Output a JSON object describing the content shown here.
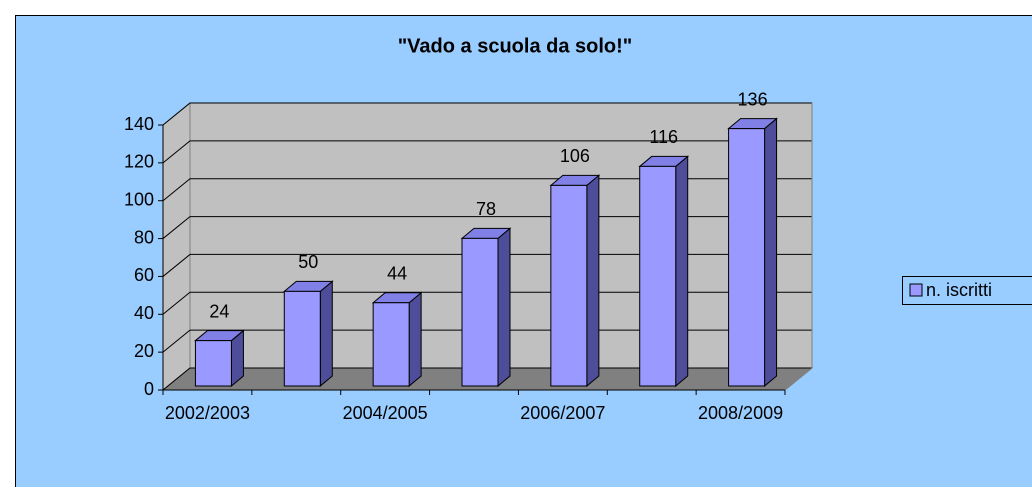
{
  "chart_data": {
    "type": "bar3d",
    "title": "\"Vado a scuola da solo!\"",
    "categories": [
      "2002/2003",
      null,
      "2004/2005",
      null,
      "2006/2007",
      null,
      "2008/2009"
    ],
    "series": [
      {
        "name": "n. iscritti",
        "color": "#9999ff",
        "values": [
          24,
          50,
          44,
          78,
          106,
          116,
          136
        ]
      }
    ],
    "ylim": [
      0,
      140
    ],
    "yticks": [
      0,
      20,
      40,
      60,
      80,
      100,
      120,
      140
    ],
    "grid": true,
    "legend": "right",
    "data_labels": true
  }
}
